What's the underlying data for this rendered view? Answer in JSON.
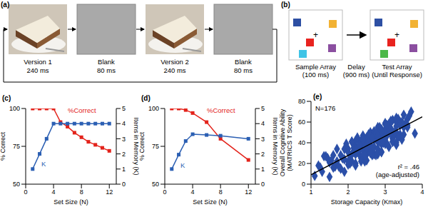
{
  "diagram_a": {
    "label": "(a)",
    "frames": [
      {
        "title": "Version 1",
        "duration": "240 ms"
      },
      {
        "title": "Blank",
        "duration": "80 ms"
      },
      {
        "title": "Version 2",
        "duration": "240 ms"
      },
      {
        "title": "Blank",
        "duration": "80 ms"
      }
    ]
  },
  "diagram_b": {
    "label": "(b)",
    "fixation": "+",
    "stages": [
      {
        "title": "Sample Array",
        "duration": "(100 ms)"
      },
      {
        "title": "Delay",
        "duration": "(900 ms)"
      },
      {
        "title": "Test Array",
        "duration": "(Until Response)"
      }
    ],
    "sample_colors": [
      "#2d4fa3",
      "#f2b233",
      "#e8231f",
      "#3fc4e6",
      "#8b4fa0"
    ],
    "test_colors": [
      "#2d4fa3",
      "#f2b233",
      "#e8231f",
      "#4cb849",
      "#8b4fa0"
    ]
  },
  "chart_data": [
    {
      "type": "line",
      "title": "(c)",
      "xlabel": "Set Size (N)",
      "ylabel": "% Correct",
      "y2label": "Items in Memory (K)",
      "x": [
        1,
        2,
        3,
        4,
        5,
        6,
        7,
        8,
        9,
        10,
        11,
        12
      ],
      "xlim": [
        0,
        13
      ],
      "xticks": [
        0,
        4,
        8,
        12
      ],
      "ylim": [
        50,
        100
      ],
      "yticks": [
        50,
        75,
        100
      ],
      "y2lim": [
        0,
        5
      ],
      "y2ticks": [
        0,
        1,
        2,
        3,
        4,
        5
      ],
      "series": [
        {
          "name": "%Correct",
          "color": "#e3231b",
          "marker": "square",
          "values": [
            100,
            100,
            100,
            100,
            91,
            88,
            84,
            81,
            78,
            76,
            74,
            72
          ]
        },
        {
          "name": "K",
          "color": "#2b5fb3",
          "marker": "square",
          "axis": "y2",
          "values": [
            1,
            2,
            3,
            4,
            4,
            4,
            4,
            4,
            4,
            4,
            4,
            4
          ]
        }
      ]
    },
    {
      "type": "line",
      "title": "(d)",
      "xlabel": "Set Size (N)",
      "ylabel": "% Correct",
      "y2label": "Items in Memory (K)",
      "x": [
        1,
        2,
        3,
        4,
        6,
        8,
        12
      ],
      "xlim": [
        0,
        13
      ],
      "xticks": [
        0,
        4,
        8,
        12
      ],
      "ylim": [
        50,
        100
      ],
      "yticks": [
        50,
        75,
        100
      ],
      "y2lim": [
        0,
        5
      ],
      "y2ticks": [
        0,
        1,
        2,
        3,
        4,
        5
      ],
      "series": [
        {
          "name": "%Correct",
          "color": "#e3231b",
          "marker": "square",
          "values": [
            100,
            100,
            99,
            97,
            91,
            80,
            66
          ]
        },
        {
          "name": "K",
          "color": "#2b5fb3",
          "marker": "square",
          "axis": "y2",
          "values": [
            1,
            1.95,
            2.85,
            3.3,
            3.25,
            3.2,
            3.0
          ]
        }
      ]
    },
    {
      "type": "scatter",
      "title": "(e)",
      "xlabel": "Storage Capacity (Kmax)",
      "ylabel": "Overall Cognitive Ability (MATRICS T Score)",
      "annotations": [
        "N=176",
        "r² = .46",
        "(age-adjusted)"
      ],
      "xlim": [
        1,
        4
      ],
      "xticks": [
        1,
        2,
        3,
        4
      ],
      "ylim": [
        0,
        80
      ],
      "yticks": [
        0,
        20,
        40,
        60,
        80
      ],
      "color": "#2b4fa8",
      "marker": "diamond",
      "x": [
        1.1,
        1.2,
        1.3,
        1.4,
        1.5,
        1.5,
        1.6,
        1.6,
        1.7,
        1.7,
        1.8,
        1.8,
        1.9,
        1.9,
        1.9,
        2.0,
        2.0,
        2.0,
        2.1,
        2.1,
        2.1,
        2.2,
        2.2,
        2.2,
        2.2,
        2.3,
        2.3,
        2.3,
        2.3,
        2.4,
        2.4,
        2.4,
        2.4,
        2.5,
        2.5,
        2.5,
        2.5,
        2.5,
        2.6,
        2.6,
        2.6,
        2.6,
        2.6,
        2.7,
        2.7,
        2.7,
        2.7,
        2.7,
        2.8,
        2.8,
        2.8,
        2.8,
        2.8,
        2.9,
        2.9,
        2.9,
        2.9,
        2.9,
        3.0,
        3.0,
        3.0,
        3.0,
        3.0,
        3.1,
        3.1,
        3.1,
        3.1,
        3.2,
        3.2,
        3.2,
        3.2,
        3.3,
        3.3,
        3.3,
        3.3,
        3.4,
        3.4,
        3.4,
        3.5,
        3.5,
        3.5,
        3.6,
        3.6,
        3.7,
        3.8,
        1.25,
        1.45,
        1.65,
        1.85,
        1.95,
        2.05,
        2.15,
        2.25,
        2.35,
        2.45,
        2.55,
        2.65,
        2.75,
        2.85,
        2.95,
        3.05,
        3.15,
        3.25,
        3.35,
        3.45,
        3.55,
        3.65,
        2.05,
        2.15,
        2.25,
        2.35,
        2.45,
        2.55,
        2.65,
        2.75,
        2.85,
        2.95,
        3.05,
        3.15,
        3.25,
        3.35,
        3.45,
        2.45,
        2.55,
        2.65,
        2.75,
        2.85,
        2.95,
        3.05,
        3.15,
        2.0,
        2.2,
        2.4,
        2.6,
        2.8,
        3.0,
        3.2,
        3.4,
        2.1,
        2.3,
        2.5,
        2.7,
        2.9,
        3.1,
        3.3,
        2.2,
        2.4,
        2.6,
        2.8,
        3.0,
        3.2,
        2.3,
        2.5,
        2.7,
        2.9,
        3.1,
        1.75,
        1.55,
        1.35,
        3.6,
        2.45,
        2.65,
        2.85,
        3.05,
        2.35,
        2.55,
        2.75,
        2.95,
        3.15,
        3.3,
        2.6,
        2.8,
        3.0,
        2.4,
        2.2,
        2.9
      ],
      "values": [
        8,
        18,
        12,
        27,
        7,
        21,
        28,
        16,
        22,
        34,
        15,
        28,
        24,
        34,
        12,
        34,
        22,
        31,
        41,
        29,
        22,
        37,
        29,
        42,
        20,
        36,
        41,
        29,
        34,
        47,
        26,
        39,
        33,
        45,
        23,
        43,
        31,
        40,
        50,
        38,
        31,
        44,
        36,
        51,
        29,
        43,
        48,
        36,
        43,
        55,
        34,
        47,
        41,
        53,
        31,
        51,
        39,
        48,
        58,
        46,
        39,
        52,
        44,
        58,
        36,
        50,
        55,
        45,
        50,
        62,
        41,
        56,
        50,
        60,
        38,
        60,
        48,
        57,
        67,
        55,
        48,
        63,
        55,
        70,
        49,
        16,
        25,
        17,
        25,
        39,
        20,
        35,
        31,
        42,
        22,
        44,
        34,
        45,
        55,
        45,
        39,
        54,
        48,
        63,
        43,
        59,
        66,
        24,
        31,
        45,
        25,
        40,
        36,
        48,
        28,
        50,
        40,
        50,
        60,
        50,
        45,
        60,
        33,
        48,
        28,
        44,
        51,
        41,
        47,
        61,
        19,
        36,
        33,
        47,
        29,
        53,
        44,
        57,
        41,
        33,
        29,
        46,
        42,
        58,
        40,
        34,
        42,
        34,
        43,
        59,
        41,
        38,
        35,
        49,
        31,
        54,
        17,
        23,
        27,
        57,
        28,
        45,
        41,
        57,
        22,
        40,
        49,
        41,
        49,
        64,
        30,
        47,
        45,
        43,
        18,
        51
      ],
      "fit_line": {
        "x": [
          1,
          4
        ],
        "values": [
          9,
          65
        ]
      }
    }
  ]
}
